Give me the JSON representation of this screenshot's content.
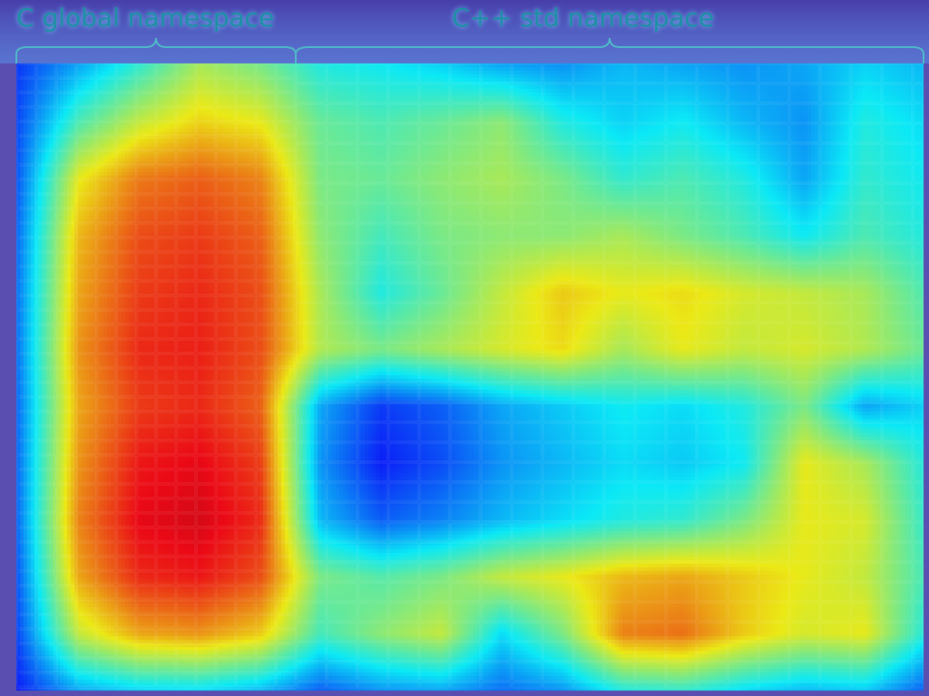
{
  "labels": {
    "c_namespace": "C global namespace",
    "cpp_namespace": "C++ std namespace"
  },
  "colors": {
    "background": "#5a4fb0",
    "brace": "#4fb6c8",
    "label": "#1f8fa6"
  },
  "chart_data": {
    "type": "heatmap",
    "title": "",
    "xlabel": "",
    "ylabel": "",
    "colormap": "jet",
    "value_range": [
      0,
      1
    ],
    "regions": [
      {
        "name": "C global namespace",
        "mean_intensity": 0.72
      },
      {
        "name": "C++ std namespace",
        "mean_intensity": 0.42
      }
    ],
    "grid": {
      "rows": 12,
      "cols": 16,
      "values": [
        [
          0.18,
          0.3,
          0.42,
          0.55,
          0.5,
          0.4,
          0.38,
          0.35,
          0.3,
          0.28,
          0.32,
          0.3,
          0.28,
          0.3,
          0.35,
          0.32
        ],
        [
          0.2,
          0.45,
          0.58,
          0.65,
          0.62,
          0.48,
          0.45,
          0.48,
          0.52,
          0.4,
          0.35,
          0.38,
          0.32,
          0.28,
          0.4,
          0.36
        ],
        [
          0.22,
          0.62,
          0.75,
          0.78,
          0.74,
          0.5,
          0.48,
          0.52,
          0.55,
          0.5,
          0.42,
          0.45,
          0.4,
          0.3,
          0.42,
          0.38
        ],
        [
          0.24,
          0.68,
          0.8,
          0.82,
          0.78,
          0.52,
          0.44,
          0.5,
          0.52,
          0.52,
          0.55,
          0.5,
          0.45,
          0.38,
          0.45,
          0.4
        ],
        [
          0.25,
          0.7,
          0.82,
          0.84,
          0.8,
          0.55,
          0.4,
          0.48,
          0.58,
          0.66,
          0.62,
          0.64,
          0.6,
          0.58,
          0.55,
          0.45
        ],
        [
          0.25,
          0.72,
          0.84,
          0.85,
          0.8,
          0.56,
          0.5,
          0.55,
          0.6,
          0.64,
          0.55,
          0.62,
          0.58,
          0.6,
          0.56,
          0.48
        ],
        [
          0.24,
          0.7,
          0.82,
          0.84,
          0.78,
          0.3,
          0.18,
          0.22,
          0.3,
          0.34,
          0.38,
          0.36,
          0.4,
          0.5,
          0.3,
          0.35
        ],
        [
          0.24,
          0.72,
          0.86,
          0.88,
          0.82,
          0.28,
          0.15,
          0.2,
          0.28,
          0.32,
          0.36,
          0.34,
          0.38,
          0.62,
          0.55,
          0.4
        ],
        [
          0.24,
          0.74,
          0.88,
          0.9,
          0.84,
          0.32,
          0.22,
          0.26,
          0.32,
          0.36,
          0.4,
          0.42,
          0.5,
          0.62,
          0.6,
          0.42
        ],
        [
          0.22,
          0.7,
          0.84,
          0.86,
          0.8,
          0.5,
          0.46,
          0.5,
          0.58,
          0.62,
          0.68,
          0.7,
          0.66,
          0.62,
          0.58,
          0.44
        ],
        [
          0.2,
          0.58,
          0.7,
          0.72,
          0.66,
          0.44,
          0.52,
          0.58,
          0.36,
          0.5,
          0.74,
          0.76,
          0.66,
          0.6,
          0.62,
          0.4
        ],
        [
          0.15,
          0.3,
          0.35,
          0.36,
          0.32,
          0.22,
          0.28,
          0.3,
          0.24,
          0.28,
          0.4,
          0.42,
          0.36,
          0.32,
          0.34,
          0.22
        ]
      ]
    }
  }
}
